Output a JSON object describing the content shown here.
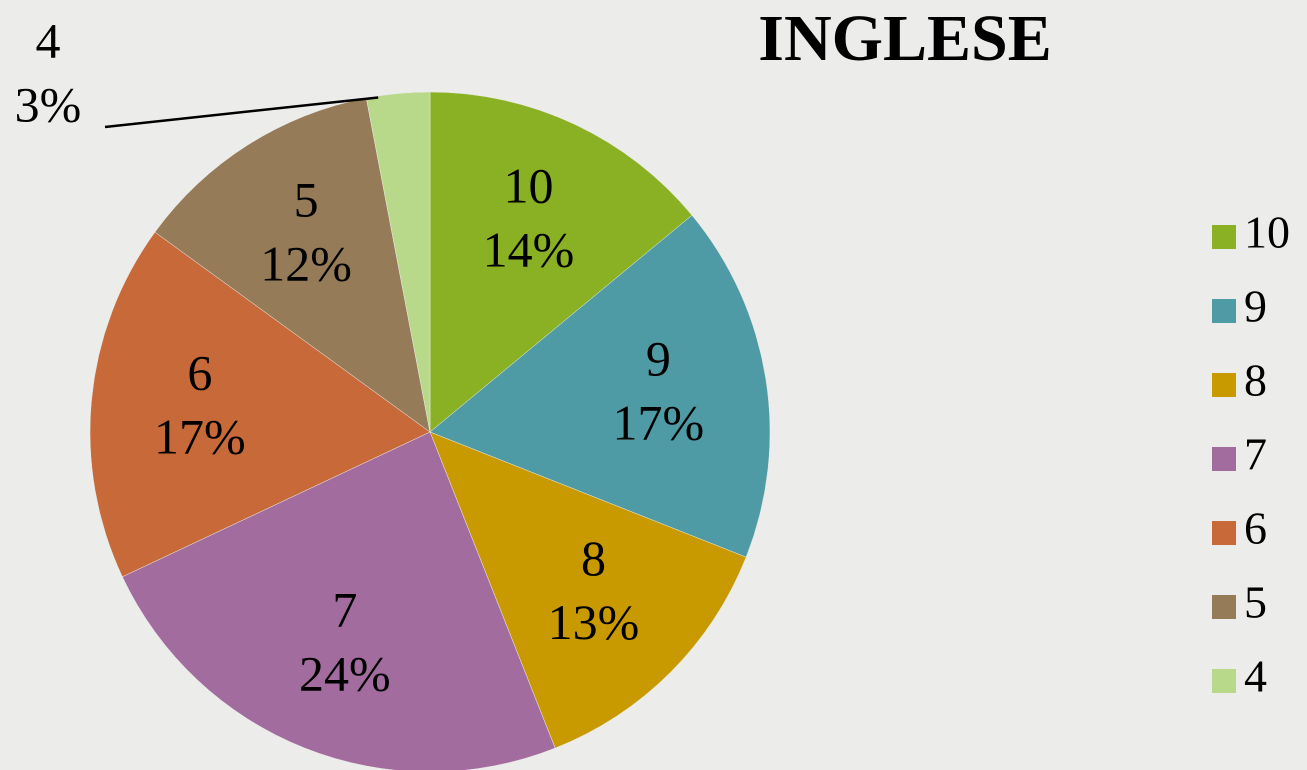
{
  "chart_data": {
    "type": "pie",
    "title": "INGLESE",
    "categories": [
      "10",
      "9",
      "8",
      "7",
      "6",
      "5",
      "4"
    ],
    "values": [
      14,
      17,
      13,
      24,
      17,
      12,
      3
    ],
    "value_labels": [
      "14%",
      "17%",
      "13%",
      "24%",
      "17%",
      "12%",
      "3%"
    ],
    "colors": [
      "#8ab023",
      "#4f9ba5",
      "#c89a00",
      "#a26c9e",
      "#c8693a",
      "#957b58",
      "#b8d88a"
    ],
    "legend": "right"
  }
}
